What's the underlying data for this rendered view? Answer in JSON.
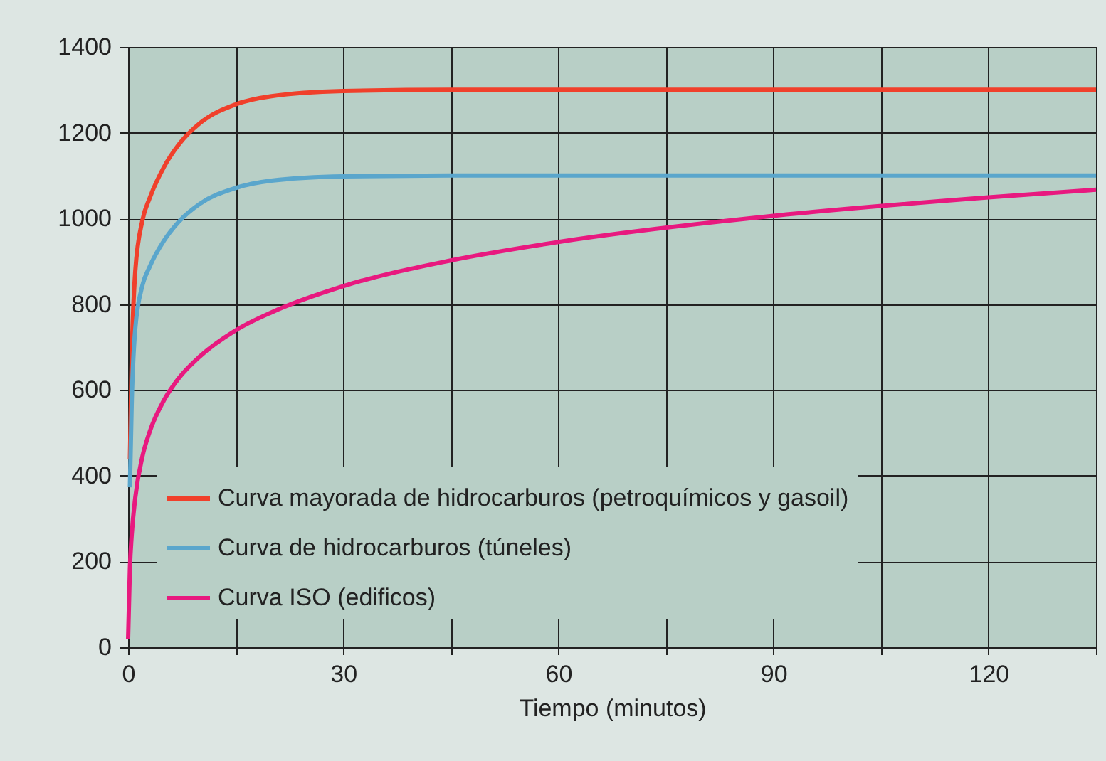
{
  "chart_data": {
    "type": "line",
    "xlabel": "Tiempo (minutos)",
    "x": [
      0,
      0.25,
      0.5,
      1,
      2,
      3,
      5,
      7,
      10,
      15,
      20,
      30,
      45,
      60,
      90,
      120,
      135
    ],
    "series": [
      {
        "name": "Curva mayorada de hidrocarburos (petroquímicos y gasoil)",
        "color": "#f0402b",
        "values": [
          null,
          439,
          670,
          877,
          996,
          1047,
          1120,
          1171,
          1222,
          1266,
          1285,
          1297,
          1300,
          1300,
          1300,
          1300,
          1300
        ]
      },
      {
        "name": "Curva de hidrocarburos (túneles)",
        "color": "#5aa6cc",
        "values": [
          null,
          373,
          568,
          743,
          844,
          887,
          948,
          991,
          1034,
          1071,
          1088,
          1098,
          1100,
          1100,
          1100,
          1100,
          1100
        ]
      },
      {
        "name": "Curva ISO (edificos)",
        "color": "#e8197f",
        "values": [
          20,
          185,
          261,
          349,
          445,
          502,
          576,
          626,
          678,
          739,
          781,
          842,
          902,
          945,
          1006,
          1049,
          1067
        ]
      }
    ],
    "xlim": [
      0,
      135
    ],
    "xticks": [
      0,
      {
        "value": 15,
        "label": null
      },
      30,
      {
        "value": 45,
        "label": null
      },
      60,
      {
        "value": 75,
        "label": null
      },
      90,
      {
        "value": 105,
        "label": null
      },
      120,
      {
        "value": 135,
        "label": null
      }
    ],
    "ylim": [
      0,
      1400
    ],
    "yticks": [
      0,
      200,
      400,
      600,
      800,
      1000,
      1200,
      1400
    ],
    "grid": true,
    "legend": "bottom left",
    "marker": "none",
    "line_style": "solid"
  }
}
